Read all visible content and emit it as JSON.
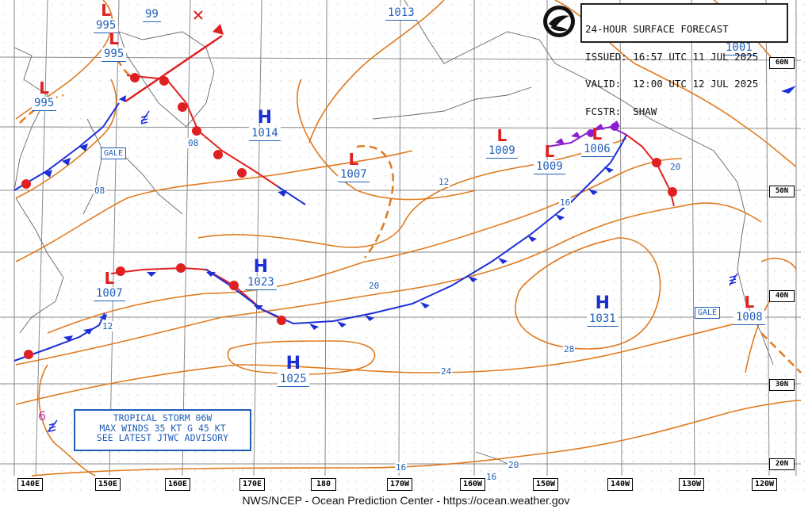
{
  "header": {
    "line1": "24-HOUR SURFACE FORECAST",
    "line2": "ISSUED: 16:57 UTC 11 JUL 2025",
    "line3": "VALID:  12:00 UTC 12 JUL 2025",
    "line4": "FCSTR:  SHAW",
    "logo": "noaa-logo"
  },
  "credit": "NWS/NCEP - Ocean Prediction Center - https://ocean.weather.gov",
  "tropical_storm": {
    "line1": "TROPICAL STORM 06W",
    "line2": "MAX WINDS 35 KT G 45 KT",
    "line3": "SEE LATEST JTWC ADVISORY",
    "symbol": "6"
  },
  "longitude_labels": [
    "140E",
    "150E",
    "160E",
    "170E",
    "180",
    "170W",
    "160W",
    "150W",
    "140W",
    "130W",
    "120W"
  ],
  "latitude_labels": [
    "60N",
    "50N",
    "40N",
    "30N",
    "20N"
  ],
  "pressure_centers": [
    {
      "type": "L",
      "value": "995"
    },
    {
      "type": "L",
      "value": "99"
    },
    {
      "type": "L",
      "value": "995"
    },
    {
      "type": "L",
      "value": "995"
    },
    {
      "type": "L",
      "value": "1013"
    },
    {
      "type": "H",
      "value": "1014"
    },
    {
      "type": "L",
      "value": "1007"
    },
    {
      "type": "L",
      "value": "1009"
    },
    {
      "type": "L",
      "value": "1009"
    },
    {
      "type": "L",
      "value": "1006"
    },
    {
      "type": "L",
      "value": "1001"
    },
    {
      "type": "L",
      "value": "1007"
    },
    {
      "type": "H",
      "value": "1023"
    },
    {
      "type": "H",
      "value": "1025"
    },
    {
      "type": "H",
      "value": "1031"
    },
    {
      "type": "L",
      "value": "1008"
    }
  ],
  "gale_label": "GALE",
  "isobar_labels": [
    "08",
    "08",
    "12",
    "12",
    "16",
    "20",
    "20",
    "24",
    "28",
    "16",
    "16",
    "20"
  ],
  "colors": {
    "isobar": "#e07b20",
    "low_symbol": "#e02020",
    "cold_front": "#1c2fd6",
    "warm_front": "#e02020",
    "occluded_front": "#8a1fd0",
    "label_text": "#1f5fb8",
    "grid": "#888888",
    "coast": "#555555"
  }
}
